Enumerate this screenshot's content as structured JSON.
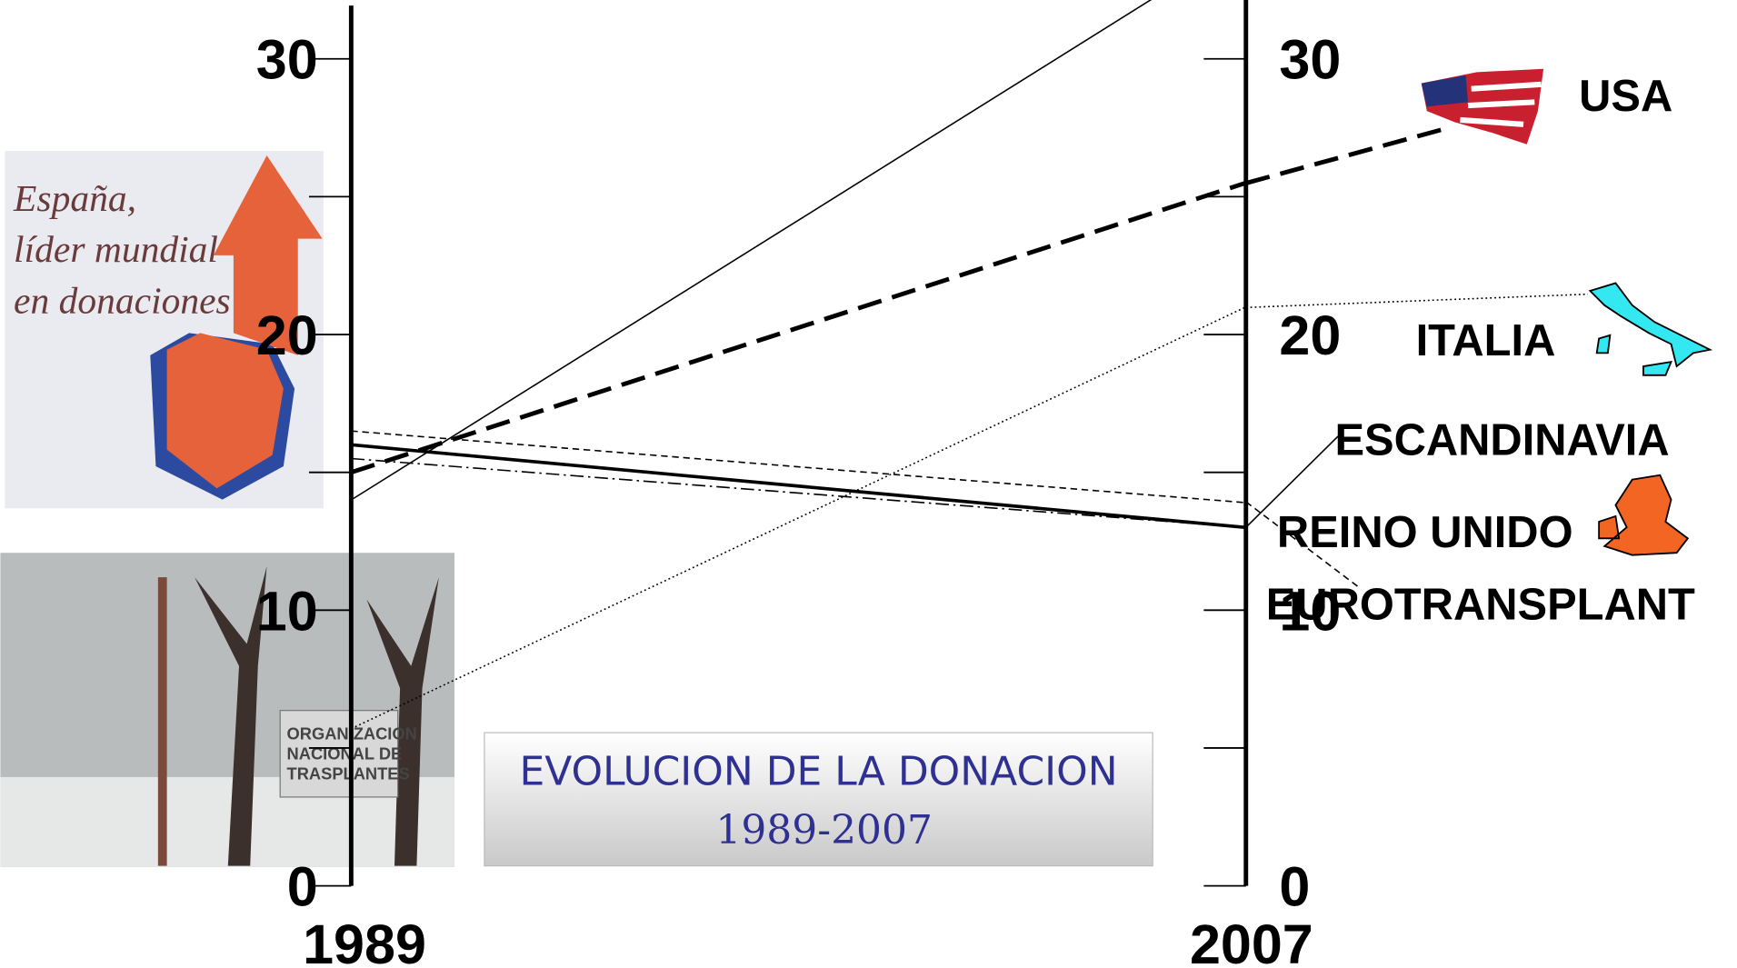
{
  "chart_data": {
    "type": "slope",
    "title": "EVOLUCION DE LA DONACION",
    "subtitle": "1989-2007",
    "categories": [
      "1989",
      "2007"
    ],
    "ylim": [
      0,
      30
    ],
    "yticks": [
      0,
      10,
      20,
      30
    ],
    "yminor": [
      5,
      15,
      25
    ],
    "series": [
      {
        "color": "#000000",
        "line_style": "solid",
        "width": 1.3,
        "values": [
          14.0,
          34.3
        ]
      },
      {
        "name": "USA",
        "color": "#000000",
        "line_style": "dashed",
        "width": 4,
        "values": [
          15.0,
          25.5
        ]
      },
      {
        "name": "ITALIA",
        "color": "#000000",
        "line_style": "dotted",
        "width": 1.3,
        "values": [
          5.7,
          21.0
        ]
      },
      {
        "name": "ESCANDINAVIA",
        "color": "#000000",
        "line_style": "solid",
        "width": 3,
        "values": [
          16.0,
          13.0
        ]
      },
      {
        "name": "REINO UNIDO",
        "color": "#000000",
        "line_style": "dashdot",
        "width": 1.3,
        "values": [
          15.5,
          13.0
        ]
      },
      {
        "name": "EUROTRANSPLANT",
        "color": "#000000",
        "line_style": "dashed-fine",
        "width": 1.3,
        "values": [
          16.5,
          13.9
        ]
      }
    ],
    "images": [
      {
        "text": [
          "España,",
          "líder mundial",
          "en donaciones"
        ]
      },
      {
        "text": [
          "ORGANIZACION",
          "NACIONAL DE",
          "TRASPLANTES"
        ]
      }
    ]
  }
}
